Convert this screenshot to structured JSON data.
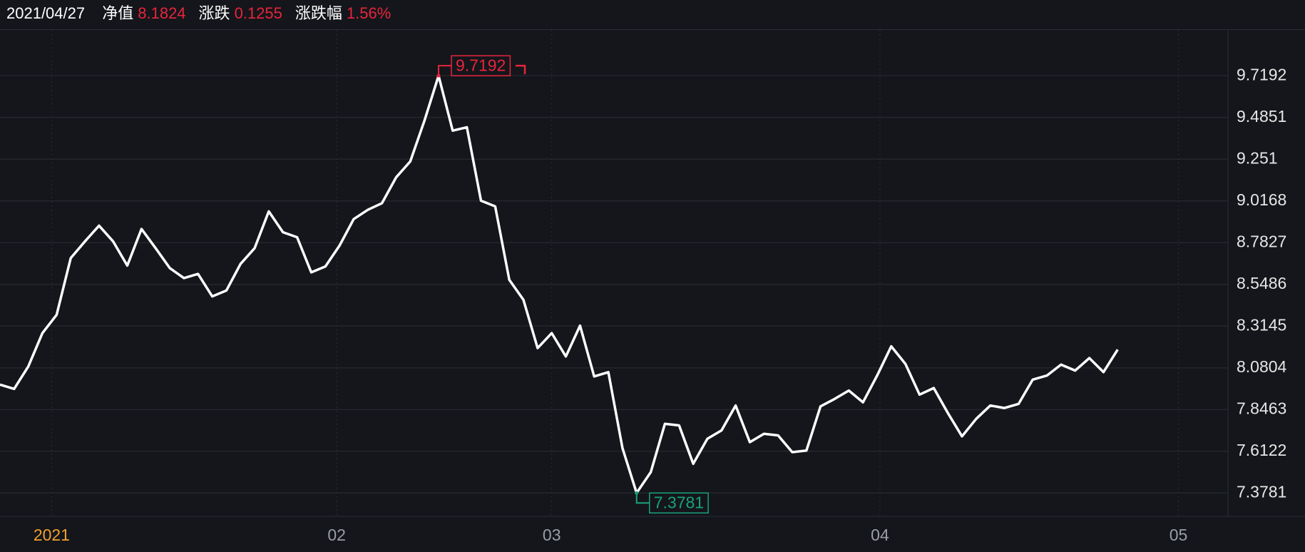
{
  "chart_data": {
    "type": "line",
    "header": {
      "date": "2021/04/27",
      "items": [
        {
          "label": "净值",
          "value": 8.1824
        },
        {
          "label": "涨跌",
          "value": 0.1255
        },
        {
          "label": "涨跌幅",
          "value": 1.56,
          "value_label": "1.56%"
        }
      ],
      "value_color": "#e8243c"
    },
    "x": [
      0,
      1,
      2,
      3,
      4,
      5,
      6,
      7,
      8,
      9,
      10,
      11,
      12,
      13,
      14,
      15,
      16,
      17,
      18,
      19,
      20,
      21,
      22,
      23,
      24,
      25,
      26,
      27,
      28,
      29,
      30,
      31,
      32,
      33,
      34,
      35,
      36,
      37,
      38,
      39,
      40,
      41,
      42,
      43,
      44,
      45,
      46,
      47,
      48,
      49,
      50,
      51,
      52,
      53,
      54,
      55,
      56,
      57,
      58,
      59,
      60,
      61,
      62,
      63,
      64,
      65,
      66,
      67,
      68,
      69,
      70,
      71,
      72,
      73,
      74,
      75,
      76,
      77,
      78,
      79
    ],
    "series": [
      {
        "color": "#ffffff",
        "values": [
          7.986,
          7.962,
          8.088,
          8.275,
          8.378,
          8.696,
          8.789,
          8.878,
          8.789,
          8.654,
          8.859,
          8.752,
          8.64,
          8.584,
          8.607,
          8.481,
          8.514,
          8.663,
          8.752,
          8.958,
          8.841,
          8.813,
          8.616,
          8.649,
          8.766,
          8.915,
          8.967,
          9.004,
          9.149,
          9.238,
          9.467,
          9.7192,
          9.411,
          9.43,
          9.018,
          8.986,
          8.574,
          8.462,
          8.191,
          8.275,
          8.144,
          8.317,
          8.032,
          8.056,
          7.63,
          7.3781,
          7.495,
          7.766,
          7.757,
          7.542,
          7.682,
          7.729,
          7.869,
          7.663,
          7.71,
          7.701,
          7.607,
          7.616,
          7.864,
          7.906,
          7.953,
          7.887,
          8.037,
          8.201,
          8.102,
          7.93,
          7.967,
          7.827,
          7.696,
          7.794,
          7.869,
          7.855,
          7.878,
          8.014,
          8.037,
          8.098,
          8.065,
          8.135,
          8.056,
          8.1824
        ]
      }
    ],
    "max_color": "#e8243c",
    "min_color": "#1aa37a",
    "xlim": [
      0,
      86.8
    ],
    "xticks": [
      {
        "value": 3.65,
        "label": "2021"
      },
      {
        "value": 23.8,
        "label": "02"
      },
      {
        "value": 39,
        "label": "03"
      },
      {
        "value": 62.2,
        "label": "04"
      },
      {
        "value": 83.3,
        "label": "05"
      }
    ],
    "xtick_colors": [
      "#f0a030",
      "#9a9ea6",
      "#9a9ea6",
      "#9a9ea6",
      "#9a9ea6"
    ],
    "ylim": [
      7.247,
      9.976
    ],
    "yticks": [
      9.7192,
      9.4851,
      9.251,
      9.0168,
      8.7827,
      8.5486,
      8.3145,
      8.0804,
      7.8463,
      7.6122,
      7.3781
    ],
    "grid": true
  }
}
